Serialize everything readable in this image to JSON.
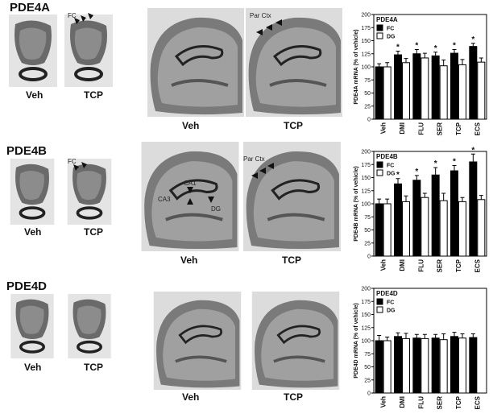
{
  "panels": [
    {
      "title": "PDE4A",
      "image_labels": [
        "Veh",
        "TCP",
        "Veh",
        "TCP"
      ],
      "annotations": [
        "FC",
        "Par Ctx"
      ]
    },
    {
      "title": "PDE4B",
      "image_labels": [
        "Veh",
        "TCP",
        "Veh",
        "TCP"
      ],
      "annotations": [
        "FC",
        "CA1",
        "CA3",
        "DG",
        "Par Ctx"
      ]
    },
    {
      "title": "PDE4D",
      "image_labels": [
        "Veh",
        "TCP",
        "Veh",
        "TCP"
      ]
    }
  ],
  "chart_data": [
    {
      "type": "bar",
      "title": "PDE4A",
      "y_label": "PDE4A mRNA (% of vehicle)",
      "categories": [
        "Veh",
        "DMI",
        "FLU",
        "SER",
        "TCP",
        "ECS"
      ],
      "series": [
        {
          "name": "FC",
          "color": "#000000",
          "values": [
            100,
            123,
            125,
            121,
            126,
            139
          ],
          "errors": [
            6,
            7,
            8,
            7,
            7,
            6
          ],
          "markers": [
            null,
            "*",
            "*",
            "*",
            "*",
            "*"
          ]
        },
        {
          "name": "DG",
          "color": "#ffffff",
          "values": [
            100,
            108,
            117,
            102,
            104,
            109
          ],
          "errors": [
            8,
            8,
            9,
            11,
            10,
            8
          ]
        }
      ],
      "ylim": [
        0,
        200
      ],
      "yticks": [
        0,
        25,
        50,
        75,
        100,
        125,
        150,
        175,
        200
      ]
    },
    {
      "type": "bar",
      "title": "PDE4B",
      "y_label": "PDE4B mRNA (% of vehicle)",
      "categories": [
        "Veh",
        "DMI",
        "FLU",
        "SER",
        "TCP",
        "ECS"
      ],
      "series": [
        {
          "name": "FC",
          "color": "#000000",
          "values": [
            100,
            138,
            145,
            155,
            163,
            180
          ],
          "errors": [
            9,
            10,
            9,
            14,
            10,
            15
          ],
          "markers": [
            null,
            "*",
            "*",
            "*",
            "*",
            "*"
          ]
        },
        {
          "name": "DG",
          "color": "#ffffff",
          "values": [
            100,
            104,
            112,
            106,
            104,
            108
          ],
          "errors": [
            9,
            11,
            8,
            14,
            8,
            8
          ]
        }
      ],
      "ylim": [
        0,
        200
      ],
      "yticks": [
        0,
        25,
        50,
        75,
        100,
        125,
        150,
        175,
        200
      ]
    },
    {
      "type": "bar",
      "title": "PDE4D",
      "y_label": "PDE4D mRNA (% of vehicle)",
      "categories": [
        "Veh",
        "DMI",
        "FLU",
        "SER",
        "TCP",
        "ECS"
      ],
      "series": [
        {
          "name": "FC",
          "color": "#000000",
          "values": [
            100,
            108,
            105,
            105,
            108,
            106
          ],
          "errors": [
            10,
            7,
            7,
            7,
            8,
            7
          ]
        },
        {
          "name": "DG",
          "color": "#ffffff",
          "values": [
            100,
            104,
            104,
            102,
            105,
            null
          ],
          "errors": [
            7,
            10,
            8,
            11,
            8,
            null
          ]
        }
      ],
      "ylim": [
        0,
        200
      ],
      "yticks": [
        0,
        25,
        50,
        75,
        100,
        125,
        150,
        175,
        200
      ]
    }
  ]
}
